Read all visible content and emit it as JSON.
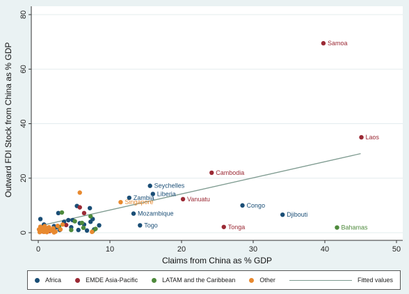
{
  "colors": {
    "Africa": "#1a4e76",
    "EMDE Asia-Pacific": "#9b2a35",
    "LATAM and the Caribbean": "#4e8a3c",
    "Other": "#e8892f",
    "Fitted values": "#7d9a8f"
  },
  "legend": {
    "africa": "Africa",
    "asia": "EMDE Asia-Pacific",
    "latam": "LATAM and the Caribbean",
    "other": "Other",
    "fitted": "Fitted values"
  },
  "chart_data": {
    "type": "scatter",
    "xlabel": "Claims from China as % GDP",
    "ylabel": "Outward FDI Stock from China as % GDP",
    "xlim": [
      0,
      50
    ],
    "ylim": [
      0,
      80
    ],
    "xticks": [
      0,
      10,
      20,
      30,
      40,
      50
    ],
    "yticks": [
      0,
      20,
      40,
      60,
      80
    ],
    "grid": "horizontal",
    "legend_position": "bottom",
    "fitted_line": {
      "name": "Fitted values",
      "x": [
        0,
        45
      ],
      "y": [
        2.4,
        29
      ]
    },
    "labeled_points": [
      {
        "label": "Samoa",
        "x": 39.8,
        "y": 69.5,
        "group": "EMDE Asia-Pacific"
      },
      {
        "label": "Laos",
        "x": 45.1,
        "y": 35,
        "group": "EMDE Asia-Pacific"
      },
      {
        "label": "Cambodia",
        "x": 24.2,
        "y": 22,
        "group": "EMDE Asia-Pacific"
      },
      {
        "label": "Seychelles",
        "x": 15.6,
        "y": 17.2,
        "group": "Africa"
      },
      {
        "label": "Liberia",
        "x": 16,
        "y": 14.2,
        "group": "Africa"
      },
      {
        "label": "Zambia",
        "x": 12.7,
        "y": 12.8,
        "group": "Africa"
      },
      {
        "label": "Singapore",
        "x": 11.5,
        "y": 11.2,
        "group": "Other"
      },
      {
        "label": "Vanuatu",
        "x": 20.2,
        "y": 12.3,
        "group": "EMDE Asia-Pacific"
      },
      {
        "label": "Congo",
        "x": 28.5,
        "y": 10,
        "group": "Africa"
      },
      {
        "label": "Djibouti",
        "x": 34.1,
        "y": 6.6,
        "group": "Africa"
      },
      {
        "label": "Mozambique",
        "x": 13.3,
        "y": 7,
        "group": "Africa"
      },
      {
        "label": "Togo",
        "x": 14.2,
        "y": 2.7,
        "group": "Africa"
      },
      {
        "label": "Tonga",
        "x": 25.9,
        "y": 2.1,
        "group": "EMDE Asia-Pacific"
      },
      {
        "label": "Bahamas",
        "x": 41.7,
        "y": 1.9,
        "group": "LATAM and the Caribbean"
      }
    ],
    "series": [
      {
        "name": "Africa",
        "points": [
          [
            0.3,
            5
          ],
          [
            0.8,
            3
          ],
          [
            1.2,
            1.5
          ],
          [
            2,
            0.8
          ],
          [
            2.8,
            7.2
          ],
          [
            3.6,
            4
          ],
          [
            4.2,
            4.6
          ],
          [
            4.8,
            4.6
          ],
          [
            5.4,
            9.8
          ],
          [
            5.8,
            3.5
          ],
          [
            6.4,
            3
          ],
          [
            7.2,
            9
          ],
          [
            7.3,
            4
          ],
          [
            7.6,
            5
          ],
          [
            7.8,
            1.2
          ],
          [
            8.5,
            2.7
          ],
          [
            2.5,
            2
          ],
          [
            3,
            1
          ],
          [
            4.6,
            2
          ],
          [
            5.6,
            1
          ],
          [
            6.8,
            0.8
          ],
          [
            1.6,
            1
          ],
          [
            0.5,
            1.5
          ],
          [
            2.2,
            2.4
          ]
        ]
      },
      {
        "name": "EMDE Asia-Pacific",
        "points": [
          [
            5.8,
            9.3
          ],
          [
            6.4,
            7.2
          ],
          [
            3.9,
            2.8
          ],
          [
            0.7,
            0.4
          ],
          [
            1.6,
            0.6
          ]
        ]
      },
      {
        "name": "LATAM and the Caribbean",
        "points": [
          [
            3.3,
            7.4
          ],
          [
            4.6,
            1
          ],
          [
            6.1,
            3.6
          ],
          [
            7.3,
            6
          ],
          [
            8,
            1.4
          ],
          [
            5.1,
            4.2
          ],
          [
            6.3,
            1.8
          ],
          [
            7.6,
            0.5
          ],
          [
            1.1,
            0.7
          ],
          [
            2.9,
            2.2
          ]
        ]
      },
      {
        "name": "Other",
        "points": [
          [
            5.8,
            14.7
          ],
          [
            0.2,
            0.2
          ],
          [
            0.4,
            0.6
          ],
          [
            0.6,
            1
          ],
          [
            0.8,
            0.3
          ],
          [
            1,
            1.4
          ],
          [
            1.3,
            0.5
          ],
          [
            1.5,
            2
          ],
          [
            1.8,
            0.8
          ],
          [
            2.1,
            1.6
          ],
          [
            2.4,
            0.4
          ],
          [
            2.7,
            2.5
          ],
          [
            3.1,
            1.2
          ],
          [
            3.4,
            3
          ],
          [
            0.3,
            2.2
          ],
          [
            0.5,
            1.8
          ],
          [
            0.9,
            2.4
          ],
          [
            1.2,
            0.2
          ],
          [
            0.1,
            1.2
          ],
          [
            2.2,
            0.1
          ],
          [
            7.5,
            0.3
          ],
          [
            0.7,
            0.9
          ]
        ]
      }
    ]
  }
}
